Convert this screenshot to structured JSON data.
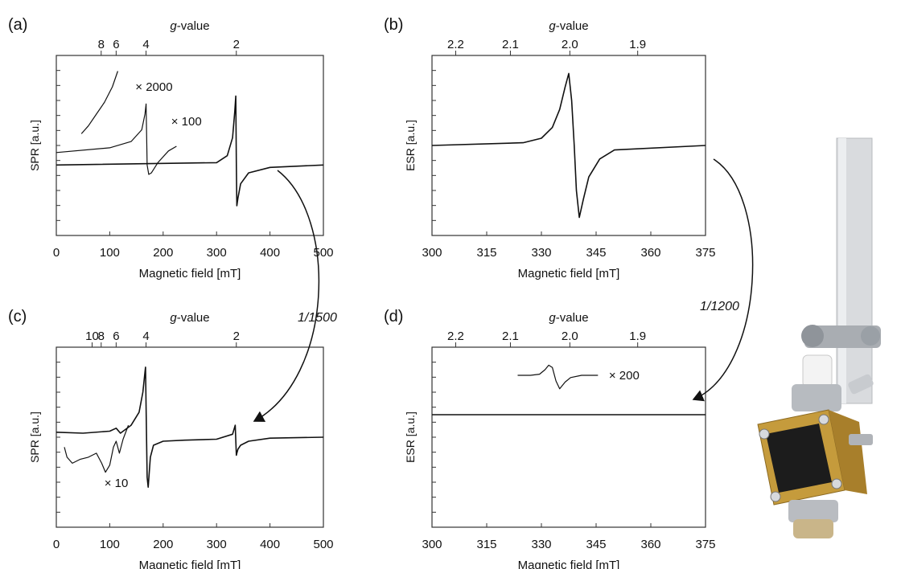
{
  "figure": {
    "scale_arrows": [
      {
        "text": "1/1500",
        "from_panel": "a",
        "to_panel": "c"
      },
      {
        "text": "1/1200",
        "from_panel": "b",
        "to_panel": "d"
      }
    ],
    "photo": {
      "description_icon": "esr-cavity-probe-photo-icon"
    }
  },
  "colors": {
    "line": "#111111",
    "frame": "#333333",
    "photo_gold": "#c59b3c",
    "photo_silver": "#d9dbde"
  },
  "chart_data": [
    {
      "id": "a",
      "panel_label": "(a)",
      "type": "line",
      "xlabel": "Magnetic field [mT]",
      "ylabel": "SPR [a.u.]",
      "xlim": [
        0,
        500
      ],
      "xticks": [
        0,
        100,
        200,
        300,
        400,
        500
      ],
      "top_axis": {
        "label_italic": "g",
        "label_rest": "-value",
        "ticks": [
          "8",
          "6",
          "4",
          "2"
        ],
        "fields": [
          84,
          112,
          168,
          337
        ]
      },
      "series": [
        {
          "name": "main",
          "x": [
            0,
            300,
            320,
            330,
            334,
            336,
            337,
            338,
            340,
            345,
            360,
            400,
            500
          ],
          "y": [
            0,
            0.3,
            1.2,
            3.5,
            6.8,
            8.8,
            0,
            -5.2,
            -4.2,
            -2.4,
            -1.0,
            -0.3,
            0
          ]
        },
        {
          "name": "x100",
          "x": [
            0,
            100,
            140,
            160,
            166,
            168,
            170,
            173,
            178,
            190,
            210,
            225
          ],
          "y": [
            1.6,
            2.2,
            3.0,
            4.5,
            6.5,
            7.8,
            0,
            -1.2,
            -1.0,
            0.3,
            1.8,
            2.4
          ]
        },
        {
          "name": "x2000",
          "x": [
            47,
            60,
            75,
            90,
            105,
            115
          ],
          "y": [
            4.0,
            5.0,
            6.5,
            8.0,
            10.0,
            12.0
          ]
        }
      ],
      "annotations": [
        {
          "text": "× 2000",
          "x": 148,
          "y": 10.0
        },
        {
          "text": "× 100",
          "x": 215,
          "y": 5.6
        }
      ]
    },
    {
      "id": "b",
      "panel_label": "(b)",
      "type": "line",
      "xlabel": "Magnetic field [mT]",
      "ylabel": "ESR [a.u.]",
      "xlim": [
        300,
        375
      ],
      "xticks": [
        300,
        315,
        330,
        345,
        360,
        375
      ],
      "top_axis": {
        "label_italic": "g",
        "label_rest": "-value",
        "ticks": [
          "2.2",
          "2.1",
          "2.0",
          "1.9"
        ],
        "fields": [
          306.5,
          321.5,
          337.8,
          356.4
        ]
      },
      "series": [
        {
          "name": "main",
          "x": [
            300,
            325,
            330,
            333,
            335,
            336.5,
            337.5,
            338.3,
            339,
            339.6,
            340.4,
            341.5,
            343,
            346,
            350,
            375
          ],
          "y": [
            0,
            0.3,
            0.8,
            2.0,
            4.0,
            6.5,
            8.0,
            5.0,
            0,
            -5.0,
            -8.0,
            -6.0,
            -3.5,
            -1.5,
            -0.5,
            0
          ]
        }
      ],
      "annotations": []
    },
    {
      "id": "c",
      "panel_label": "(c)",
      "type": "line",
      "xlabel": "Magnetic field [mT]",
      "ylabel": "SPR [a.u.]",
      "xlim": [
        0,
        500
      ],
      "xticks": [
        0,
        100,
        200,
        300,
        400,
        500
      ],
      "top_axis": {
        "label_italic": "g",
        "label_rest": "-value",
        "ticks": [
          "10",
          "8",
          "6",
          "4",
          "2"
        ],
        "fields": [
          67,
          84,
          112,
          168,
          337
        ]
      },
      "series": [
        {
          "name": "main",
          "x": [
            0,
            50,
            100,
            112,
            120,
            140,
            155,
            162,
            166,
            167,
            168,
            170,
            172,
            176,
            182,
            200,
            240,
            300,
            330,
            335,
            337,
            338,
            340,
            345,
            360,
            400,
            500
          ],
          "y": [
            0.5,
            0.4,
            0.6,
            0.9,
            0.4,
            1.2,
            2.5,
            4.5,
            6.5,
            7.0,
            3.0,
            -4.0,
            -5.0,
            -2.0,
            -0.8,
            -0.4,
            -0.3,
            -0.2,
            0.3,
            1.2,
            -1.8,
            -1.6,
            -1.2,
            -0.8,
            -0.4,
            -0.1,
            0
          ]
        },
        {
          "name": "x10",
          "x": [
            15,
            20,
            30,
            45,
            60,
            75,
            85,
            92,
            100,
            107,
            112,
            118,
            125,
            135
          ],
          "y": [
            -1.0,
            -2.0,
            -2.6,
            -2.2,
            -2.0,
            -1.6,
            -2.6,
            -3.5,
            -2.8,
            -1.0,
            -0.4,
            -1.6,
            -0.2,
            1.2
          ]
        }
      ],
      "annotations": [
        {
          "text": "× 10",
          "x": 90,
          "y": -4.6
        }
      ]
    },
    {
      "id": "d",
      "panel_label": "(d)",
      "type": "line",
      "xlabel": "Magnetic field [mT]",
      "ylabel": "ESR [a.u.]",
      "xlim": [
        300,
        375
      ],
      "xticks": [
        300,
        315,
        330,
        345,
        360,
        375
      ],
      "top_axis": {
        "label_italic": "g",
        "label_rest": "-value",
        "ticks": [
          "2.2",
          "2.1",
          "2.0",
          "1.9"
        ],
        "fields": [
          306.5,
          321.5,
          337.8,
          356.4
        ]
      },
      "series": [
        {
          "name": "main",
          "x": [
            300,
            375
          ],
          "y": [
            0,
            0
          ]
        },
        {
          "name": "x200",
          "x": [
            323.5,
            327,
            329.5,
            331,
            332,
            333,
            334,
            335,
            336.5,
            338,
            341,
            345.5
          ],
          "y": [
            3.5,
            3.5,
            3.6,
            4.0,
            4.4,
            4.2,
            3.0,
            2.3,
            2.9,
            3.3,
            3.5,
            3.5
          ]
        }
      ],
      "annotations": [
        {
          "text": "× 200",
          "x": 348.5,
          "y": 3.5
        }
      ]
    }
  ]
}
